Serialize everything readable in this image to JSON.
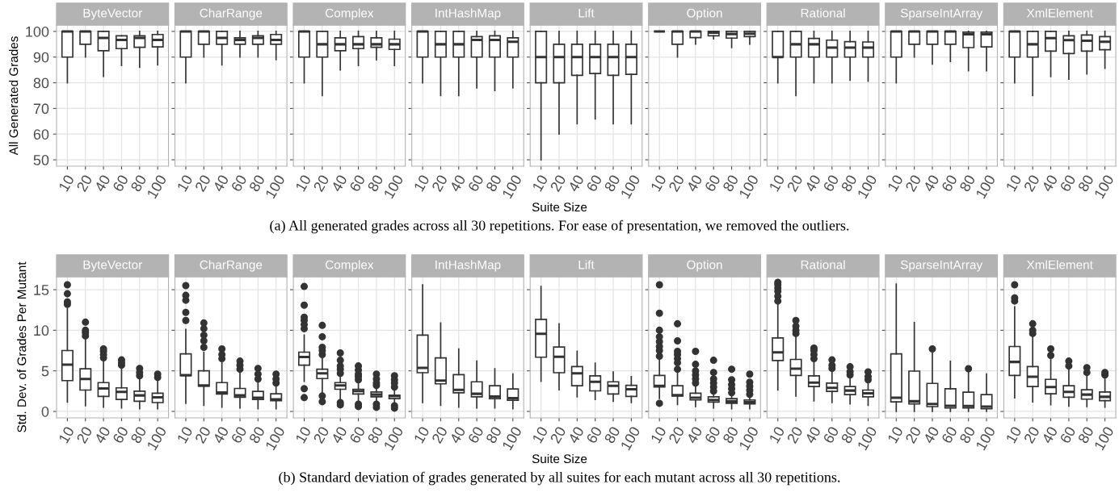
{
  "chart_data": [
    {
      "type": "box",
      "title": "ByteVector",
      "ylabel": "All Generated Grades",
      "categories": [
        "10",
        "20",
        "40",
        "60",
        "80",
        "100"
      ],
      "ylim": [
        47.5,
        102.5
      ],
      "yticks": [
        50,
        60,
        70,
        80,
        90,
        100
      ],
      "grid": true,
      "boxes": [
        {
          "low": 80,
          "q1": 90,
          "median": 100,
          "q3": 100,
          "high": 100
        },
        {
          "low": 90,
          "q1": 95,
          "median": 100,
          "q3": 100,
          "high": 100
        },
        {
          "low": 82.5,
          "q1": 92.5,
          "median": 97.5,
          "q3": 100,
          "high": 100
        },
        {
          "low": 86.7,
          "q1": 93.3,
          "median": 96.7,
          "q3": 98.3,
          "high": 98.3
        },
        {
          "low": 86,
          "q1": 93.8,
          "median": 97.5,
          "q3": 98.3,
          "high": 100
        },
        {
          "low": 87,
          "q1": 94,
          "median": 96.7,
          "q3": 98.8,
          "high": 100
        }
      ]
    },
    {
      "type": "box",
      "title": "CharRange",
      "categories": [
        "10",
        "20",
        "40",
        "60",
        "80",
        "100"
      ],
      "ylim": [
        47.5,
        102.5
      ],
      "yticks": [
        50,
        60,
        70,
        80,
        90,
        100
      ],
      "grid": true,
      "tick_labels": "x",
      "boxes": [
        {
          "low": 80,
          "q1": 90,
          "median": 100,
          "q3": 100,
          "high": 100
        },
        {
          "low": 90,
          "q1": 95,
          "median": 100,
          "q3": 100,
          "high": 100
        },
        {
          "low": 87,
          "q1": 95,
          "median": 97.5,
          "q3": 100,
          "high": 100
        },
        {
          "low": 90,
          "q1": 95,
          "median": 96.7,
          "q3": 97.5,
          "high": 100
        },
        {
          "low": 90,
          "q1": 95,
          "median": 97.5,
          "q3": 98.3,
          "high": 100
        },
        {
          "low": 89,
          "q1": 95,
          "median": 96.7,
          "q3": 98.8,
          "high": 100
        }
      ]
    },
    {
      "type": "box",
      "title": "Complex",
      "categories": [
        "10",
        "20",
        "40",
        "60",
        "80",
        "100"
      ],
      "ylim": [
        47.5,
        102.5
      ],
      "yticks": [
        50,
        60,
        70,
        80,
        90,
        100
      ],
      "grid": true,
      "tick_labels": "x",
      "boxes": [
        {
          "low": 80,
          "q1": 90,
          "median": 100,
          "q3": 100,
          "high": 100
        },
        {
          "low": 75,
          "q1": 90,
          "median": 95,
          "q3": 100,
          "high": 100
        },
        {
          "low": 85,
          "q1": 92.5,
          "median": 95,
          "q3": 97.5,
          "high": 100
        },
        {
          "low": 86.7,
          "q1": 93.3,
          "median": 95,
          "q3": 98,
          "high": 100
        },
        {
          "low": 88.9,
          "q1": 93.8,
          "median": 95,
          "q3": 97.5,
          "high": 100
        },
        {
          "low": 86.7,
          "q1": 93,
          "median": 95,
          "q3": 97,
          "high": 100
        }
      ]
    },
    {
      "type": "box",
      "title": "IntHashMap",
      "categories": [
        "10",
        "20",
        "40",
        "60",
        "80",
        "100"
      ],
      "ylim": [
        47.5,
        102.5
      ],
      "yticks": [
        50,
        60,
        70,
        80,
        90,
        100
      ],
      "grid": true,
      "tick_labels": "x",
      "boxes": [
        {
          "low": 80,
          "q1": 90,
          "median": 100,
          "q3": 100,
          "high": 100
        },
        {
          "low": 75,
          "q1": 90,
          "median": 95,
          "q3": 100,
          "high": 100
        },
        {
          "low": 75,
          "q1": 90,
          "median": 95,
          "q3": 100,
          "high": 100
        },
        {
          "low": 78,
          "q1": 90,
          "median": 96.7,
          "q3": 98,
          "high": 100
        },
        {
          "low": 77,
          "q1": 90,
          "median": 96.7,
          "q3": 98.3,
          "high": 100
        },
        {
          "low": 78,
          "q1": 90,
          "median": 96,
          "q3": 97.5,
          "high": 100
        }
      ]
    },
    {
      "type": "box",
      "title": "Lift",
      "xlabel": "Suite Size",
      "annotations": [
        "(a) All generated grades across all 30 repetitions. For ease of presentation, we removed the outliers."
      ],
      "categories": [
        "10",
        "20",
        "40",
        "60",
        "80",
        "100"
      ],
      "ylim": [
        47.5,
        102.5
      ],
      "yticks": [
        50,
        60,
        70,
        80,
        90,
        100
      ],
      "grid": true,
      "tick_labels": "x",
      "boxes": [
        {
          "low": 50,
          "q1": 80,
          "median": 90,
          "q3": 100,
          "high": 100
        },
        {
          "low": 60,
          "q1": 80,
          "median": 90,
          "q3": 95,
          "high": 100
        },
        {
          "low": 64,
          "q1": 82.9,
          "median": 90,
          "q3": 95,
          "high": 100
        },
        {
          "low": 65.9,
          "q1": 83.6,
          "median": 90,
          "q3": 95,
          "high": 100
        },
        {
          "low": 64,
          "q1": 82.9,
          "median": 90,
          "q3": 95,
          "high": 100
        },
        {
          "low": 64,
          "q1": 83.3,
          "median": 90,
          "q3": 95,
          "high": 100
        }
      ]
    },
    {
      "type": "box",
      "title": "Option",
      "categories": [
        "10",
        "20",
        "40",
        "60",
        "80",
        "100"
      ],
      "ylim": [
        47.5,
        102.5
      ],
      "yticks": [
        50,
        60,
        70,
        80,
        90,
        100
      ],
      "grid": true,
      "tick_labels": "x",
      "boxes": [
        {
          "low": 100,
          "q1": 100,
          "median": 100,
          "q3": 100,
          "high": 100
        },
        {
          "low": 90,
          "q1": 95,
          "median": 100,
          "q3": 100,
          "high": 100
        },
        {
          "low": 95.1,
          "q1": 97.6,
          "median": 100,
          "q3": 100,
          "high": 100
        },
        {
          "low": 97.1,
          "q1": 98.3,
          "median": 99.5,
          "q3": 100,
          "high": 100
        },
        {
          "low": 93.7,
          "q1": 97.4,
          "median": 99,
          "q3": 100,
          "high": 100
        },
        {
          "low": 95.1,
          "q1": 98,
          "median": 99.1,
          "q3": 100,
          "high": 100
        }
      ]
    },
    {
      "type": "box",
      "title": "Rational",
      "categories": [
        "10",
        "20",
        "40",
        "60",
        "80",
        "100"
      ],
      "ylim": [
        47.5,
        102.5
      ],
      "yticks": [
        50,
        60,
        70,
        80,
        90,
        100
      ],
      "grid": true,
      "tick_labels": "x",
      "boxes": [
        {
          "low": 80,
          "q1": 90,
          "median": 90,
          "q3": 100,
          "high": 100
        },
        {
          "low": 75,
          "q1": 90,
          "median": 95,
          "q3": 100,
          "high": 100
        },
        {
          "low": 80,
          "q1": 90,
          "median": 95,
          "q3": 97.3,
          "high": 100
        },
        {
          "low": 80,
          "q1": 90,
          "median": 93.7,
          "q3": 96.6,
          "high": 100
        },
        {
          "low": 81,
          "q1": 90,
          "median": 93.7,
          "q3": 96,
          "high": 100
        },
        {
          "low": 80.6,
          "q1": 90,
          "median": 93.7,
          "q3": 95.9,
          "high": 100
        }
      ]
    },
    {
      "type": "box",
      "title": "SparseIntArray",
      "categories": [
        "10",
        "20",
        "40",
        "60",
        "80",
        "100"
      ],
      "ylim": [
        47.5,
        102.5
      ],
      "yticks": [
        50,
        60,
        70,
        80,
        90,
        100
      ],
      "grid": true,
      "tick_labels": "x",
      "boxes": [
        {
          "low": 80,
          "q1": 90,
          "median": 100,
          "q3": 100,
          "high": 100
        },
        {
          "low": 90,
          "q1": 95,
          "median": 100,
          "q3": 100,
          "high": 100
        },
        {
          "low": 87.3,
          "q1": 95,
          "median": 100,
          "q3": 100,
          "high": 100
        },
        {
          "low": 88.3,
          "q1": 95,
          "median": 100,
          "q3": 100,
          "high": 100
        },
        {
          "low": 84.7,
          "q1": 93.7,
          "median": 98.9,
          "q3": 99.7,
          "high": 100
        },
        {
          "low": 84.7,
          "q1": 94,
          "median": 98.9,
          "q3": 99.7,
          "high": 100
        }
      ]
    },
    {
      "type": "box",
      "title": "XmlElement",
      "categories": [
        "10",
        "20",
        "40",
        "60",
        "80",
        "100"
      ],
      "ylim": [
        47.5,
        102.5
      ],
      "yticks": [
        50,
        60,
        70,
        80,
        90,
        100
      ],
      "grid": true,
      "tick_labels": "x",
      "boxes": [
        {
          "low": 80,
          "q1": 90,
          "median": 100,
          "q3": 100,
          "high": 100
        },
        {
          "low": 75,
          "q1": 90,
          "median": 95,
          "q3": 100,
          "high": 100
        },
        {
          "low": 82.4,
          "q1": 92.3,
          "median": 97.4,
          "q3": 100,
          "high": 100
        },
        {
          "low": 81.4,
          "q1": 91.4,
          "median": 96.6,
          "q3": 98.3,
          "high": 100
        },
        {
          "low": 83.4,
          "q1": 92.3,
          "median": 96.4,
          "q3": 98.6,
          "high": 100
        },
        {
          "low": 85.6,
          "q1": 92.9,
          "median": 96,
          "q3": 98,
          "high": 100
        }
      ]
    },
    {
      "type": "box",
      "title": "ByteVector",
      "ylabel": "Std. Dev. of Grades Per Mutant",
      "categories": [
        "10",
        "20",
        "40",
        "60",
        "80",
        "100"
      ],
      "ylim": [
        -0.8,
        16.6
      ],
      "yticks": [
        0,
        5,
        10,
        15
      ],
      "grid": true,
      "boxes": [
        {
          "low": 1.15,
          "q1": 3.8,
          "median": 5.76,
          "q3": 7.5,
          "high": 12.7,
          "outliers": [
            13.2,
            13.5,
            14.5,
            15.6
          ]
        },
        {
          "low": 0.7,
          "q1": 2.63,
          "median": 4.0,
          "q3": 5.26,
          "high": 9.0,
          "outliers": [
            9.3,
            9.7,
            10.0,
            11.0
          ]
        },
        {
          "low": 0.53,
          "q1": 1.84,
          "median": 2.83,
          "q3": 3.55,
          "high": 6.5,
          "outliers": [
            6.6,
            7.0,
            7.4,
            7.7
          ]
        },
        {
          "low": 0.43,
          "q1": 1.48,
          "median": 2.4,
          "q3": 2.9,
          "high": 5.5,
          "outliers": [
            5.7,
            6.0,
            6.35
          ]
        },
        {
          "low": 0.33,
          "q1": 1.25,
          "median": 1.97,
          "q3": 2.5,
          "high": 4.2,
          "outliers": [
            4.4,
            4.8,
            5.3
          ]
        },
        {
          "low": 0.33,
          "q1": 1.09,
          "median": 1.74,
          "q3": 2.24,
          "high": 4.0,
          "outliers": [
            4.2,
            4.6
          ]
        }
      ]
    },
    {
      "type": "box",
      "title": "CharRange",
      "categories": [
        "10",
        "20",
        "40",
        "60",
        "80",
        "100"
      ],
      "ylim": [
        -0.8,
        16.6
      ],
      "yticks": [
        0,
        5,
        10,
        15
      ],
      "grid": true,
      "tick_labels": "x",
      "boxes": [
        {
          "low": 1.0,
          "q1": 4.4,
          "median": 4.47,
          "q3": 7.1,
          "high": 10.1,
          "outliers": [
            11.2,
            12.2,
            13.7,
            14.3,
            15.5
          ]
        },
        {
          "low": 0.76,
          "q1": 3.1,
          "median": 3.2,
          "q3": 5.0,
          "high": 7.3,
          "outliers": [
            7.9,
            8.7,
            9.4,
            10.2,
            10.9
          ]
        },
        {
          "low": 0.53,
          "q1": 2.14,
          "median": 2.34,
          "q3": 3.55,
          "high": 6.0,
          "outliers": [
            6.5,
            7.0,
            7.7
          ]
        },
        {
          "low": 0.43,
          "q1": 1.74,
          "median": 1.97,
          "q3": 2.83,
          "high": 4.9,
          "outliers": [
            5.2,
            5.7,
            6.2
          ]
        },
        {
          "low": 0.33,
          "q1": 1.48,
          "median": 1.68,
          "q3": 2.47,
          "high": 3.7,
          "outliers": [
            4.0,
            4.6,
            5.3
          ]
        },
        {
          "low": 0.33,
          "q1": 1.32,
          "median": 1.48,
          "q3": 2.17,
          "high": 3.16,
          "outliers": [
            3.5,
            4.0,
            4.6
          ]
        }
      ]
    },
    {
      "type": "box",
      "title": "Complex",
      "categories": [
        "10",
        "20",
        "40",
        "60",
        "80",
        "100"
      ],
      "ylim": [
        -0.8,
        16.6
      ],
      "yticks": [
        0,
        5,
        10,
        15
      ],
      "grid": true,
      "tick_labels": "x",
      "boxes": [
        {
          "low": 3.7,
          "q1": 5.7,
          "median": 6.7,
          "q3": 7.3,
          "high": 9.4,
          "outliers": [
            1.7,
            2.8,
            10.2,
            10.7,
            11.2,
            11.6,
            13.1,
            15.4
          ]
        },
        {
          "low": 2.24,
          "q1": 4.05,
          "median": 4.7,
          "q3": 5.2,
          "high": 6.5,
          "outliers": [
            1.2,
            1.9,
            7.0,
            7.5,
            7.9,
            9.2,
            10.6
          ]
        },
        {
          "low": 1.58,
          "q1": 2.73,
          "median": 3.2,
          "q3": 3.55,
          "high": 4.4,
          "outliers": [
            0.8,
            1.1,
            4.7,
            5.2,
            5.6,
            6.3,
            7.2
          ]
        },
        {
          "low": 1.3,
          "q1": 2.14,
          "median": 2.5,
          "q3": 2.73,
          "high": 3.55,
          "outliers": [
            0.6,
            0.9,
            3.9,
            4.3,
            4.6,
            5.1,
            5.6
          ]
        },
        {
          "low": 1.25,
          "q1": 1.8,
          "median": 2.07,
          "q3": 2.4,
          "high": 2.9,
          "outliers": [
            0.5,
            0.9,
            3.2,
            3.5,
            4.0,
            4.6
          ]
        },
        {
          "low": 1.1,
          "q1": 1.58,
          "median": 1.88,
          "q3": 2.0,
          "high": 2.7,
          "outliers": [
            0.4,
            0.7,
            3.0,
            3.5,
            3.9,
            4.4
          ]
        }
      ]
    },
    {
      "type": "box",
      "title": "IntHashMap",
      "categories": [
        "10",
        "20",
        "40",
        "60",
        "80",
        "100"
      ],
      "ylim": [
        -0.8,
        16.6
      ],
      "yticks": [
        0,
        5,
        10,
        15
      ],
      "grid": true,
      "tick_labels": "x",
      "boxes": [
        {
          "low": 1.09,
          "q1": 4.77,
          "median": 5.36,
          "q3": 9.4,
          "high": 15.6
        },
        {
          "low": 0.76,
          "q1": 3.4,
          "median": 3.8,
          "q3": 6.6,
          "high": 10.9
        },
        {
          "low": 0.53,
          "q1": 2.3,
          "median": 2.66,
          "q3": 4.54,
          "high": 7.7
        },
        {
          "low": 0.43,
          "q1": 1.8,
          "median": 2.17,
          "q3": 3.65,
          "high": 6.2
        },
        {
          "low": 0.43,
          "q1": 1.58,
          "median": 1.84,
          "q3": 3.16,
          "high": 5.26
        },
        {
          "low": 0.33,
          "q1": 1.38,
          "median": 1.64,
          "q3": 2.76,
          "high": 4.6
        }
      ]
    },
    {
      "type": "box",
      "title": "Lift",
      "xlabel": "Suite Size",
      "annotations": [
        "(b) Standard deviation of grades generated by all suites for each mutant across all 30 repetitions."
      ],
      "categories": [
        "10",
        "20",
        "40",
        "60",
        "80",
        "100"
      ],
      "ylim": [
        -0.8,
        16.6
      ],
      "yticks": [
        0,
        5,
        10,
        15
      ],
      "grid": true,
      "tick_labels": "x",
      "boxes": [
        {
          "low": 3.7,
          "q1": 6.68,
          "median": 9.57,
          "q3": 11.35,
          "high": 15.4
        },
        {
          "low": 2.66,
          "q1": 4.77,
          "median": 6.74,
          "q3": 7.93,
          "high": 10.8
        },
        {
          "low": 1.8,
          "q1": 3.16,
          "median": 4.7,
          "q3": 5.53,
          "high": 7.43
        },
        {
          "low": 1.48,
          "q1": 2.53,
          "median": 3.65,
          "q3": 4.38,
          "high": 5.95
        },
        {
          "low": 1.25,
          "q1": 2.14,
          "median": 3.16,
          "q3": 3.65,
          "high": 4.87
        },
        {
          "low": 1.09,
          "q1": 1.84,
          "median": 2.73,
          "q3": 3.22,
          "high": 4.28
        }
      ]
    },
    {
      "type": "box",
      "title": "Option",
      "categories": [
        "10",
        "20",
        "40",
        "60",
        "80",
        "100"
      ],
      "ylim": [
        -0.8,
        16.6
      ],
      "yticks": [
        0,
        5,
        10,
        15
      ],
      "grid": true,
      "tick_labels": "x",
      "boxes": [
        {
          "low": 1.6,
          "q1": 3.0,
          "median": 3.16,
          "q3": 4.44,
          "high": 6.5,
          "outliers": [
            1.0,
            6.8,
            7.5,
            8.0,
            8.6,
            9.2,
            10.0,
            12.1,
            15.6
          ]
        },
        {
          "low": 0.86,
          "q1": 1.9,
          "median": 2.0,
          "q3": 3.16,
          "high": 4.87,
          "outliers": [
            5.2,
            6.0,
            6.5,
            7.0,
            7.4,
            8.7,
            10.8
          ]
        },
        {
          "low": 0.6,
          "q1": 1.41,
          "median": 1.68,
          "q3": 2.24,
          "high": 3.06,
          "outliers": [
            3.5,
            4.0,
            4.5,
            5.0,
            5.8,
            7.4
          ]
        },
        {
          "low": 0.43,
          "q1": 1.15,
          "median": 1.41,
          "q3": 1.8,
          "high": 2.24,
          "outliers": [
            2.5,
            3.0,
            3.5,
            4.0,
            4.8,
            6.3
          ]
        },
        {
          "low": 0.33,
          "q1": 1.0,
          "median": 1.25,
          "q3": 1.58,
          "high": 1.9,
          "outliers": [
            2.3,
            2.8,
            3.3,
            3.9,
            5.2
          ]
        },
        {
          "low": 0.33,
          "q1": 0.92,
          "median": 1.15,
          "q3": 1.41,
          "high": 1.74,
          "outliers": [
            2.1,
            2.6,
            3.1,
            3.6,
            4.6
          ]
        }
      ]
    },
    {
      "type": "box",
      "title": "Rational",
      "categories": [
        "10",
        "20",
        "40",
        "60",
        "80",
        "100"
      ],
      "ylim": [
        -0.8,
        16.6
      ],
      "yticks": [
        0,
        5,
        10,
        15
      ],
      "grid": true,
      "tick_labels": "x",
      "boxes": [
        {
          "low": 2.63,
          "q1": 6.28,
          "median": 7.27,
          "q3": 9.05,
          "high": 13.3,
          "outliers": [
            13.6,
            14.2,
            14.8,
            15.2,
            15.6,
            15.9
          ]
        },
        {
          "low": 1.9,
          "q1": 4.44,
          "median": 5.26,
          "q3": 6.41,
          "high": 9.3,
          "outliers": [
            9.6,
            10.0,
            10.5,
            11.2
          ]
        },
        {
          "low": 1.3,
          "q1": 3.06,
          "median": 3.55,
          "q3": 4.38,
          "high": 6.18,
          "outliers": [
            6.5,
            7.0,
            7.5,
            7.8
          ]
        },
        {
          "low": 1.09,
          "q1": 2.47,
          "median": 2.9,
          "q3": 3.49,
          "high": 5.0,
          "outliers": [
            5.3,
            5.7,
            6.35
          ]
        },
        {
          "low": 0.92,
          "q1": 2.07,
          "median": 2.57,
          "q3": 3.06,
          "high": 4.2,
          "outliers": [
            4.5,
            4.9,
            5.5
          ]
        },
        {
          "low": 0.76,
          "q1": 1.8,
          "median": 2.24,
          "q3": 2.63,
          "high": 3.6,
          "outliers": [
            3.9,
            4.3,
            4.87
          ]
        }
      ]
    },
    {
      "type": "box",
      "title": "SparseIntArray",
      "categories": [
        "10",
        "20",
        "40",
        "60",
        "80",
        "100"
      ],
      "ylim": [
        -0.8,
        16.6
      ],
      "yticks": [
        0,
        5,
        10,
        15
      ],
      "grid": true,
      "tick_labels": "x",
      "boxes": [
        {
          "low": 0,
          "q1": 1.18,
          "median": 1.68,
          "q3": 7.1,
          "high": 15.7
        },
        {
          "low": 0,
          "q1": 0.92,
          "median": 1.25,
          "q3": 4.97,
          "high": 10.95
        },
        {
          "low": 0,
          "q1": 0.59,
          "median": 0.92,
          "q3": 3.45,
          "high": 7.4,
          "outliers": [
            7.7
          ]
        },
        {
          "low": 0,
          "q1": 0.43,
          "median": 0.69,
          "q3": 2.8,
          "high": 6.18
        },
        {
          "low": 0,
          "q1": 0.43,
          "median": 0.66,
          "q3": 2.37,
          "high": 5.0,
          "outliers": [
            5.26
          ]
        },
        {
          "low": 0,
          "q1": 0.33,
          "median": 0.59,
          "q3": 2.07,
          "high": 4.6
        }
      ]
    },
    {
      "type": "box",
      "title": "XmlElement",
      "categories": [
        "10",
        "20",
        "40",
        "60",
        "80",
        "100"
      ],
      "ylim": [
        -0.8,
        16.6
      ],
      "yticks": [
        0,
        5,
        10,
        15
      ],
      "grid": true,
      "tick_labels": "x",
      "boxes": [
        {
          "low": 1.68,
          "q1": 4.44,
          "median": 6.1,
          "q3": 8.0,
          "high": 12.9,
          "outliers": [
            13.6,
            14.0,
            15.6
          ]
        },
        {
          "low": 1.18,
          "q1": 3.06,
          "median": 4.28,
          "q3": 5.53,
          "high": 9.3,
          "outliers": [
            9.6,
            10.0,
            10.8
          ]
        },
        {
          "low": 0.82,
          "q1": 2.17,
          "median": 3.0,
          "q3": 3.95,
          "high": 6.5,
          "outliers": [
            6.9,
            7.7
          ]
        },
        {
          "low": 0.66,
          "q1": 1.74,
          "median": 2.4,
          "q3": 3.16,
          "high": 5.26,
          "outliers": [
            5.6,
            6.2
          ]
        },
        {
          "low": 0.59,
          "q1": 1.51,
          "median": 2.07,
          "q3": 2.66,
          "high": 4.47,
          "outliers": [
            4.8,
            5.4
          ]
        },
        {
          "low": 0.53,
          "q1": 1.32,
          "median": 1.8,
          "q3": 2.4,
          "high": 4.14,
          "outliers": [
            4.5,
            4.8
          ]
        }
      ]
    }
  ]
}
